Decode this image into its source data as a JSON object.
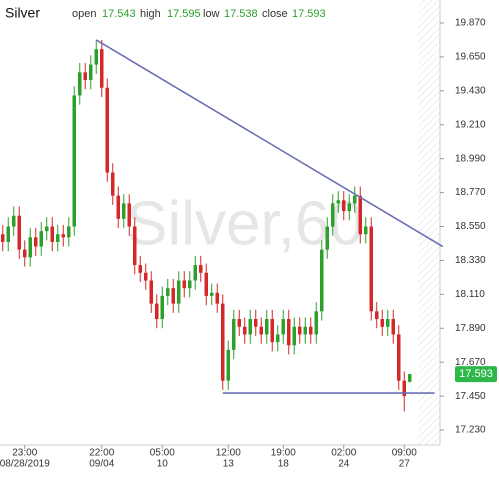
{
  "chart_data": {
    "type": "candlestick",
    "title": "Silver",
    "watermark": "Silver,60",
    "ohlc_labels": [
      "open",
      "high",
      "low",
      "close"
    ],
    "up_color": "#2ca02c",
    "down_color": "#d62728",
    "line_color": "#6a6fb5",
    "price_label_color": "#2fb84a",
    "categories": [
      null,
      null,
      null,
      null,
      "23:00",
      null,
      null,
      null,
      null,
      null,
      null,
      null,
      null,
      null,
      null,
      null,
      null,
      null,
      "22:00",
      null,
      null,
      null,
      null,
      null,
      null,
      null,
      null,
      null,
      null,
      "05:00",
      null,
      null,
      null,
      null,
      null,
      null,
      null,
      null,
      null,
      null,
      null,
      "12:00",
      null,
      null,
      null,
      null,
      null,
      null,
      null,
      null,
      null,
      "19:00",
      null,
      null,
      null,
      null,
      null,
      null,
      null,
      null,
      null,
      null,
      "02:00",
      null,
      null,
      null,
      null,
      null,
      null,
      null,
      null,
      null,
      null,
      "09:00",
      null
    ],
    "dates": [
      null,
      null,
      null,
      null,
      "08/28/2019",
      null,
      null,
      null,
      null,
      null,
      null,
      null,
      null,
      null,
      null,
      null,
      null,
      null,
      "09/04",
      null,
      null,
      null,
      null,
      null,
      null,
      null,
      null,
      null,
      null,
      "10",
      null,
      null,
      null,
      null,
      null,
      null,
      null,
      null,
      null,
      null,
      null,
      "13",
      null,
      null,
      null,
      null,
      null,
      null,
      null,
      null,
      null,
      "18",
      null,
      null,
      null,
      null,
      null,
      null,
      null,
      null,
      null,
      null,
      "24",
      null,
      null,
      null,
      null,
      null,
      null,
      null,
      null,
      null,
      null,
      "27",
      null
    ],
    "open": [
      18.5,
      18.45,
      18.55,
      18.62,
      18.4,
      18.35,
      18.48,
      18.42,
      18.52,
      18.55,
      18.45,
      18.5,
      18.48,
      18.55,
      19.4,
      19.55,
      19.5,
      19.6,
      19.7,
      19.45,
      18.9,
      18.75,
      18.6,
      18.7,
      18.55,
      18.3,
      18.25,
      18.2,
      18.05,
      17.95,
      18.1,
      18.15,
      18.05,
      18.2,
      18.15,
      18.2,
      18.3,
      18.25,
      18.1,
      18.12,
      18.05,
      17.55,
      17.75,
      17.95,
      17.9,
      17.85,
      17.95,
      17.9,
      17.85,
      17.95,
      17.8,
      17.85,
      17.95,
      17.78,
      17.9,
      17.85,
      17.9,
      17.85,
      18.0,
      18.4,
      18.55,
      18.7,
      18.72,
      18.65,
      18.7,
      18.75,
      18.5,
      18.55,
      18.0,
      17.95,
      17.9,
      17.95,
      17.85,
      17.55,
      17.543
    ],
    "high": [
      18.56,
      18.61,
      18.68,
      18.68,
      18.46,
      18.54,
      18.54,
      18.58,
      18.61,
      18.61,
      18.56,
      18.56,
      18.61,
      19.46,
      19.61,
      19.61,
      19.66,
      19.76,
      19.76,
      19.51,
      18.96,
      18.81,
      18.76,
      18.76,
      18.61,
      18.36,
      18.31,
      18.26,
      18.11,
      18.16,
      18.21,
      18.21,
      18.26,
      18.26,
      18.26,
      18.36,
      18.36,
      18.31,
      18.18,
      18.18,
      18.11,
      17.81,
      18.01,
      18.01,
      17.96,
      18.01,
      18.01,
      17.96,
      18.01,
      18.01,
      17.91,
      18.01,
      18.01,
      17.96,
      17.96,
      17.96,
      17.96,
      18.06,
      18.46,
      18.61,
      18.76,
      18.78,
      18.78,
      18.76,
      18.81,
      18.81,
      18.61,
      18.61,
      18.06,
      18.01,
      18.01,
      18.01,
      17.91,
      17.61,
      17.595
    ],
    "low": [
      18.39,
      18.39,
      18.49,
      18.34,
      18.29,
      18.29,
      18.36,
      18.36,
      18.46,
      18.39,
      18.39,
      18.42,
      18.42,
      18.49,
      19.34,
      19.44,
      19.44,
      19.54,
      19.39,
      18.84,
      18.69,
      18.54,
      18.54,
      18.49,
      18.24,
      18.19,
      18.14,
      17.99,
      17.89,
      17.89,
      18.04,
      17.99,
      17.99,
      18.09,
      18.09,
      18.14,
      18.19,
      18.04,
      18.04,
      17.99,
      17.49,
      17.49,
      17.69,
      17.84,
      17.79,
      17.79,
      17.84,
      17.79,
      17.79,
      17.74,
      17.74,
      17.79,
      17.72,
      17.72,
      17.79,
      17.79,
      17.79,
      17.79,
      17.94,
      18.34,
      18.49,
      18.64,
      18.59,
      18.59,
      18.64,
      18.44,
      18.44,
      17.94,
      17.89,
      17.84,
      17.84,
      17.79,
      17.49,
      17.35,
      17.538
    ],
    "close": [
      18.45,
      18.55,
      18.62,
      18.4,
      18.35,
      18.48,
      18.42,
      18.52,
      18.55,
      18.45,
      18.5,
      18.48,
      18.55,
      19.4,
      19.55,
      19.5,
      19.6,
      19.7,
      19.45,
      18.9,
      18.75,
      18.6,
      18.7,
      18.55,
      18.3,
      18.25,
      18.2,
      18.05,
      17.95,
      18.1,
      18.15,
      18.05,
      18.2,
      18.15,
      18.2,
      18.3,
      18.25,
      18.1,
      18.12,
      18.05,
      17.55,
      17.75,
      17.95,
      17.9,
      17.85,
      17.95,
      17.9,
      17.85,
      17.95,
      17.8,
      17.85,
      17.95,
      17.78,
      17.9,
      17.85,
      17.9,
      17.85,
      18.0,
      18.4,
      18.55,
      18.7,
      18.72,
      18.65,
      18.7,
      18.75,
      18.5,
      18.55,
      18.0,
      17.95,
      17.9,
      17.95,
      17.85,
      17.55,
      17.45,
      17.593
    ],
    "trend_lines": [
      {
        "x0": 17,
        "y0": 19.76,
        "x1": 80,
        "y1": 18.42
      },
      {
        "x0": 40,
        "y0": 17.47,
        "x1": 78.5,
        "y1": 17.47
      }
    ],
    "ylim": [
      17.133,
      20.019
    ],
    "yticks": [
      {
        "value": 19.87,
        "label": "19.870"
      },
      {
        "value": 19.65,
        "label": "19.650"
      },
      {
        "value": 19.43,
        "label": "19.430"
      },
      {
        "value": 19.21,
        "label": "19.210"
      },
      {
        "value": 18.99,
        "label": "18.990"
      },
      {
        "value": 18.77,
        "label": "18.770"
      },
      {
        "value": 18.55,
        "label": "18.550"
      },
      {
        "value": 18.33,
        "label": "18.330"
      },
      {
        "value": 18.11,
        "label": "18.110"
      },
      {
        "value": 17.89,
        "label": "17.890"
      },
      {
        "value": 17.67,
        "label": "17.670"
      },
      {
        "value": 17.45,
        "label": "17.450"
      },
      {
        "value": 17.23,
        "label": "17.230"
      }
    ]
  }
}
